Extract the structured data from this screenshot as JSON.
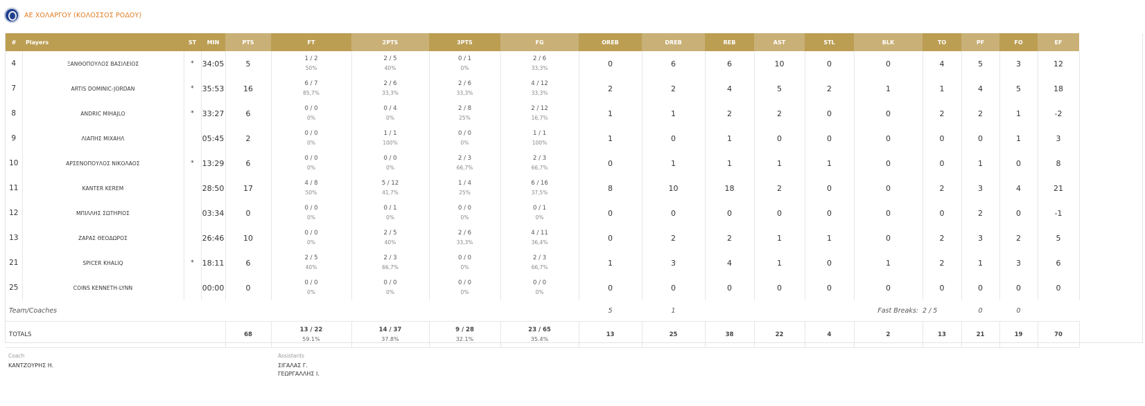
{
  "team": {
    "name": "ΑΕ ΧΟΛΑΡΓΟΥ (ΚΟΛΟΣΣΟΣ ΡΟΔΟΥ)"
  },
  "columns": [
    "#",
    "Players",
    "ST",
    "MIN",
    "PTS",
    "FT",
    "2PTS",
    "3PTS",
    "FG",
    "OREB",
    "DREB",
    "REB",
    "AST",
    "STL",
    "BLK",
    "TO",
    "PF",
    "FO",
    "EF"
  ],
  "players": [
    {
      "num": "4",
      "name": "ΞΑΝΘΟΠΟΥΛΟΣ ΒΑΣΙΛΕΙΟΣ",
      "st": "*",
      "min": "34:05",
      "pts": "5",
      "ft": "1 / 2",
      "ft_pct": "50%",
      "p2": "2 / 5",
      "p2_pct": "40%",
      "p3": "0 / 1",
      "p3_pct": "0%",
      "fg": "2 / 6",
      "fg_pct": "33,3%",
      "oreb": "0",
      "dreb": "6",
      "reb": "6",
      "ast": "10",
      "stl": "0",
      "blk": "0",
      "to": "4",
      "pf": "5",
      "fo": "3",
      "ef": "12"
    },
    {
      "num": "7",
      "name": "ARTIS DOMINIC-JORDAN",
      "st": "*",
      "min": "35:53",
      "pts": "16",
      "ft": "6 / 7",
      "ft_pct": "85,7%",
      "p2": "2 / 6",
      "p2_pct": "33,3%",
      "p3": "2 / 6",
      "p3_pct": "33,3%",
      "fg": "4 / 12",
      "fg_pct": "33,3%",
      "oreb": "2",
      "dreb": "2",
      "reb": "4",
      "ast": "5",
      "stl": "2",
      "blk": "1",
      "to": "1",
      "pf": "4",
      "fo": "5",
      "ef": "18"
    },
    {
      "num": "8",
      "name": "ANDRIC MIHAJLO",
      "st": "*",
      "min": "33:27",
      "pts": "6",
      "ft": "0 / 0",
      "ft_pct": "0%",
      "p2": "0 / 4",
      "p2_pct": "0%",
      "p3": "2 / 8",
      "p3_pct": "25%",
      "fg": "2 / 12",
      "fg_pct": "16,7%",
      "oreb": "1",
      "dreb": "1",
      "reb": "2",
      "ast": "2",
      "stl": "0",
      "blk": "0",
      "to": "2",
      "pf": "2",
      "fo": "1",
      "ef": "-2"
    },
    {
      "num": "9",
      "name": "ΛΙΑΠΗΣ ΜΙΧΑΗΛ",
      "st": "",
      "min": "05:45",
      "pts": "2",
      "ft": "0 / 0",
      "ft_pct": "0%",
      "p2": "1 / 1",
      "p2_pct": "100%",
      "p3": "0 / 0",
      "p3_pct": "0%",
      "fg": "1 / 1",
      "fg_pct": "100%",
      "oreb": "1",
      "dreb": "0",
      "reb": "1",
      "ast": "0",
      "stl": "0",
      "blk": "0",
      "to": "0",
      "pf": "0",
      "fo": "1",
      "ef": "3"
    },
    {
      "num": "10",
      "name": "ΑΡΣΕΝΟΠΟΥΛΟΣ ΝΙΚΟΛΑΟΣ",
      "st": "*",
      "min": "13:29",
      "pts": "6",
      "ft": "0 / 0",
      "ft_pct": "0%",
      "p2": "0 / 0",
      "p2_pct": "0%",
      "p3": "2 / 3",
      "p3_pct": "66,7%",
      "fg": "2 / 3",
      "fg_pct": "66,7%",
      "oreb": "0",
      "dreb": "1",
      "reb": "1",
      "ast": "1",
      "stl": "1",
      "blk": "0",
      "to": "0",
      "pf": "1",
      "fo": "0",
      "ef": "8"
    },
    {
      "num": "11",
      "name": "KANTER KEREM",
      "st": "",
      "min": "28:50",
      "pts": "17",
      "ft": "4 / 8",
      "ft_pct": "50%",
      "p2": "5 / 12",
      "p2_pct": "41,7%",
      "p3": "1 / 4",
      "p3_pct": "25%",
      "fg": "6 / 16",
      "fg_pct": "37,5%",
      "oreb": "8",
      "dreb": "10",
      "reb": "18",
      "ast": "2",
      "stl": "0",
      "blk": "0",
      "to": "2",
      "pf": "3",
      "fo": "4",
      "ef": "21"
    },
    {
      "num": "12",
      "name": "ΜΠΙΛΛΗΣ ΣΩΤΗΡΙΟΣ",
      "st": "",
      "min": "03:34",
      "pts": "0",
      "ft": "0 / 0",
      "ft_pct": "0%",
      "p2": "0 / 1",
      "p2_pct": "0%",
      "p3": "0 / 0",
      "p3_pct": "0%",
      "fg": "0 / 1",
      "fg_pct": "0%",
      "oreb": "0",
      "dreb": "0",
      "reb": "0",
      "ast": "0",
      "stl": "0",
      "blk": "0",
      "to": "0",
      "pf": "2",
      "fo": "0",
      "ef": "-1"
    },
    {
      "num": "13",
      "name": "ΖΑΡΑΣ ΘΕΟΔΩΡΟΣ",
      "st": "",
      "min": "26:46",
      "pts": "10",
      "ft": "0 / 0",
      "ft_pct": "0%",
      "p2": "2 / 5",
      "p2_pct": "40%",
      "p3": "2 / 6",
      "p3_pct": "33,3%",
      "fg": "4 / 11",
      "fg_pct": "36,4%",
      "oreb": "0",
      "dreb": "2",
      "reb": "2",
      "ast": "1",
      "stl": "1",
      "blk": "0",
      "to": "2",
      "pf": "3",
      "fo": "2",
      "ef": "5"
    },
    {
      "num": "21",
      "name": "SPICER KHALIQ",
      "st": "*",
      "min": "18:11",
      "pts": "6",
      "ft": "2 / 5",
      "ft_pct": "40%",
      "p2": "2 / 3",
      "p2_pct": "66,7%",
      "p3": "0 / 0",
      "p3_pct": "0%",
      "fg": "2 / 3",
      "fg_pct": "66,7%",
      "oreb": "1",
      "dreb": "3",
      "reb": "4",
      "ast": "1",
      "stl": "0",
      "blk": "1",
      "to": "2",
      "pf": "1",
      "fo": "3",
      "ef": "6"
    },
    {
      "num": "25",
      "name": "COINS KENNETH-LYNN",
      "st": "",
      "min": "00:00",
      "pts": "0",
      "ft": "0 / 0",
      "ft_pct": "0%",
      "p2": "0 / 0",
      "p2_pct": "0%",
      "p3": "0 / 0",
      "p3_pct": "0%",
      "fg": "0 / 0",
      "fg_pct": "0%",
      "oreb": "0",
      "dreb": "0",
      "reb": "0",
      "ast": "0",
      "stl": "0",
      "blk": "0",
      "to": "0",
      "pf": "0",
      "fo": "0",
      "ef": "0"
    }
  ],
  "team_row": {
    "label": "Team/Coaches",
    "oreb": "5",
    "dreb": "1",
    "fast_breaks_label": "Fast Breaks:",
    "fast_breaks_value": "2 / 5",
    "to": "0",
    "pf": "0"
  },
  "totals": {
    "label": "TOTALS",
    "pts": "68",
    "ft": "13 / 22",
    "ft_pct": "59.1%",
    "p2": "14 / 37",
    "p2_pct": "37.8%",
    "p3": "9 / 28",
    "p3_pct": "32.1%",
    "fg": "23 / 65",
    "fg_pct": "35.4%",
    "oreb": "13",
    "dreb": "25",
    "reb": "38",
    "ast": "22",
    "stl": "4",
    "blk": "2",
    "to": "13",
    "pf": "21",
    "fo": "19",
    "ef": "70"
  },
  "staff": {
    "coach_label": "Coach",
    "coach": "ΚΑΝΤΖΟΥΡΗΣ Η.",
    "assistants_label": "Assistants",
    "assistants": [
      "ΣΙΓΑΛΑΣ Γ.",
      "ΓΕΩΡΓΑΛΛΗΣ Ι."
    ]
  },
  "colors": {
    "header_dark": "#bc9e53",
    "header_light": "#c9b077",
    "team_name": "#e07a1f"
  }
}
